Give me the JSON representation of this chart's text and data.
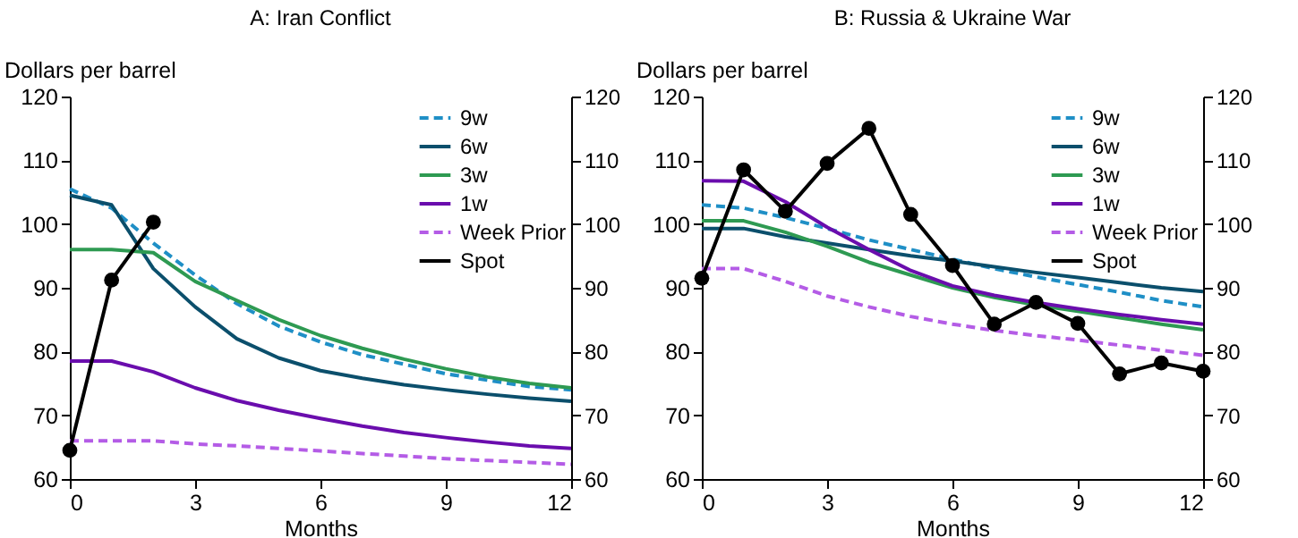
{
  "chart_data": [
    {
      "type": "line",
      "title": "A: Iran Conflict",
      "xlabel": "Months",
      "ylabel": "Dollars per barrel",
      "x": [
        0,
        1,
        2,
        3,
        4,
        5,
        6,
        7,
        8,
        9,
        10,
        11,
        12
      ],
      "xlim": [
        0,
        12
      ],
      "xticks": [
        0,
        3,
        6,
        9,
        12
      ],
      "ylim": [
        60,
        120
      ],
      "yticks": [
        60,
        70,
        80,
        90,
        100,
        110,
        120
      ],
      "y2lim": [
        60,
        120
      ],
      "y2ticks": [
        60,
        70,
        80,
        90,
        100,
        110,
        120
      ],
      "legend": "top right",
      "series": [
        {
          "name": "9w",
          "color": "#1f8fc6",
          "line_style": "dashed",
          "marker": "none",
          "values": [
            105.5,
            102.5,
            97,
            92,
            87.5,
            84,
            81.5,
            79.5,
            78,
            76.5,
            75.5,
            74.5,
            74
          ]
        },
        {
          "name": "6w",
          "color": "#0b4f6c",
          "line_style": "solid",
          "marker": "none",
          "values": [
            104.5,
            103,
            93,
            87,
            82,
            79,
            77,
            75.8,
            74.8,
            74,
            73.3,
            72.7,
            72.2
          ]
        },
        {
          "name": "3w",
          "color": "#2e9a52",
          "line_style": "solid",
          "marker": "none",
          "values": [
            96,
            96,
            95.5,
            91,
            88,
            85,
            82.5,
            80.5,
            78.8,
            77.3,
            76,
            75,
            74.3
          ]
        },
        {
          "name": "1w",
          "color": "#6a0dad",
          "line_style": "solid",
          "marker": "none",
          "values": [
            78.5,
            78.5,
            76.8,
            74.3,
            72.3,
            70.8,
            69.5,
            68.3,
            67.3,
            66.5,
            65.8,
            65.2,
            64.8
          ]
        },
        {
          "name": "Week Prior",
          "color": "#b45ce6",
          "line_style": "dashed",
          "marker": "none",
          "values": [
            66,
            66,
            66,
            65.5,
            65.2,
            64.8,
            64.4,
            64,
            63.6,
            63.2,
            62.9,
            62.6,
            62.3
          ]
        },
        {
          "name": "Spot",
          "color": "#000000",
          "line_style": "solid",
          "marker": "circle",
          "values": [
            64.5,
            91.2,
            100.3,
            null,
            null,
            null,
            null,
            null,
            null,
            null,
            null,
            null,
            null
          ]
        }
      ]
    },
    {
      "type": "line",
      "title": "B: Russia & Ukraine War",
      "xlabel": "Months",
      "ylabel": "Dollars per barrel",
      "x": [
        0,
        1,
        2,
        3,
        4,
        5,
        6,
        7,
        8,
        9,
        10,
        11,
        12
      ],
      "xlim": [
        0,
        12
      ],
      "xticks": [
        0,
        3,
        6,
        9,
        12
      ],
      "ylim": [
        60,
        120
      ],
      "yticks": [
        60,
        70,
        80,
        90,
        100,
        110,
        120
      ],
      "y2lim": [
        60,
        120
      ],
      "y2ticks": [
        60,
        70,
        80,
        90,
        100,
        110,
        120
      ],
      "legend": "top right",
      "series": [
        {
          "name": "9w",
          "color": "#1f8fc6",
          "line_style": "dashed",
          "marker": "none",
          "values": [
            103,
            102.5,
            101,
            99.3,
            97.5,
            96,
            94.5,
            93,
            91.7,
            90.5,
            89.3,
            88,
            87
          ]
        },
        {
          "name": "6w",
          "color": "#0b4f6c",
          "line_style": "solid",
          "marker": "none",
          "values": [
            99.3,
            99.3,
            98,
            97,
            96,
            95,
            94.2,
            93.3,
            92.4,
            91.6,
            90.8,
            90,
            89.4
          ]
        },
        {
          "name": "3w",
          "color": "#2e9a52",
          "line_style": "solid",
          "marker": "none",
          "values": [
            100.5,
            100.5,
            98.7,
            96.5,
            94,
            92,
            90,
            88.5,
            87.3,
            86.3,
            85.3,
            84.3,
            83.4
          ]
        },
        {
          "name": "1w",
          "color": "#6a0dad",
          "line_style": "solid",
          "marker": "none",
          "values": [
            106.8,
            106.7,
            103.5,
            99.5,
            96,
            92.7,
            90.3,
            88.8,
            87.7,
            86.7,
            85.8,
            85,
            84.3
          ]
        },
        {
          "name": "Week Prior",
          "color": "#b45ce6",
          "line_style": "dashed",
          "marker": "none",
          "values": [
            93,
            93,
            91,
            88.7,
            87,
            85.5,
            84.3,
            83.3,
            82.5,
            81.8,
            81,
            80.2,
            79.4
          ]
        },
        {
          "name": "Spot",
          "color": "#000000",
          "line_style": "solid",
          "marker": "circle",
          "values": [
            91.5,
            108.5,
            102,
            109.5,
            115,
            101.5,
            93.5,
            84.3,
            87.7,
            84.4,
            76.5,
            78.2,
            76.9
          ]
        }
      ]
    }
  ]
}
